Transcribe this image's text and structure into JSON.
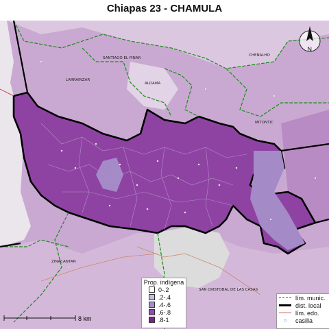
{
  "title": "Chiapas 23 - CHAMULA",
  "north": {
    "letter": "N"
  },
  "municipalities": [
    "SANTIAGO EL PINAR",
    "CHENALHO",
    "LARRAINZAR",
    "ALDAMA",
    "MITONTIC",
    "ZINACANTAN",
    "SAN CRISTOBAL DE LAS CASAS"
  ],
  "legend_indigena": {
    "title": "Prop. indígena",
    "items": [
      {
        "label": "0-.2",
        "color": "#ffffff"
      },
      {
        "label": ".2-.4",
        "color": "#c8bfe0"
      },
      {
        "label": ".4-.6",
        "color": "#a58ac8"
      },
      {
        "label": ".6-.8",
        "color": "#8c4fb0"
      },
      {
        "label": ".8-1",
        "color": "#7d1f8c"
      }
    ]
  },
  "legend_lines": {
    "items": [
      {
        "label": "lím. munic.",
        "color": "#1a8a1a"
      },
      {
        "label": "dist. local",
        "color": "#000000"
      },
      {
        "label": "lím. edo.",
        "color": "#c05050"
      },
      {
        "label": "casilla",
        "color": "#888888"
      }
    ]
  },
  "scale": {
    "label": "8 km"
  },
  "colors": {
    "district_fill": "#8e43a3",
    "surround": "#c9a9d1",
    "west_bg": "#e8e8e8",
    "urban": "#d9d9d9"
  }
}
